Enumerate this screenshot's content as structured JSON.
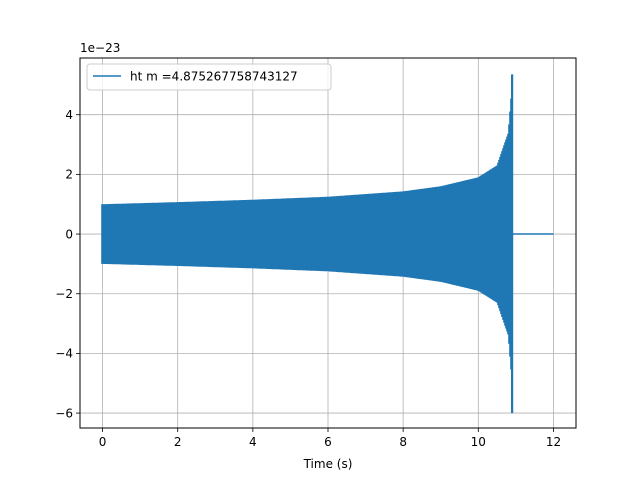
{
  "chart_data": {
    "type": "line",
    "title": "",
    "xlabel": "Time (s)",
    "ylabel": "",
    "y_offset_label": "1e−23",
    "xlim": [
      -0.6,
      12.6
    ],
    "ylim": [
      -6.5,
      5.9
    ],
    "x_ticks": [
      0,
      2,
      4,
      6,
      8,
      10,
      12
    ],
    "x_tick_labels": [
      "0",
      "2",
      "4",
      "6",
      "8",
      "10",
      "12"
    ],
    "y_ticks": [
      -6,
      -4,
      -2,
      0,
      2,
      4
    ],
    "y_tick_labels": [
      "−6",
      "−4",
      "−2",
      "0",
      "2",
      "4"
    ],
    "grid": true,
    "legend_position": "upper-left",
    "series": [
      {
        "name": "ht m =4.875267758743127",
        "color": "#1f77b4",
        "envelope": {
          "start": 0,
          "merger_time": 10.9,
          "end": 12.0,
          "initial_amplitude": 1.0,
          "amplitude_near_merger": [
            [
              0,
              1.0
            ],
            [
              2,
              1.07
            ],
            [
              4,
              1.15
            ],
            [
              6,
              1.25
            ],
            [
              8,
              1.43
            ],
            [
              9,
              1.6
            ],
            [
              10,
              1.9
            ],
            [
              10.5,
              2.3
            ],
            [
              10.8,
              3.4
            ],
            [
              10.88,
              4.7
            ]
          ],
          "peak_max": 5.35,
          "peak_min": -6.0,
          "post_merger_value": 0.0
        }
      }
    ]
  }
}
